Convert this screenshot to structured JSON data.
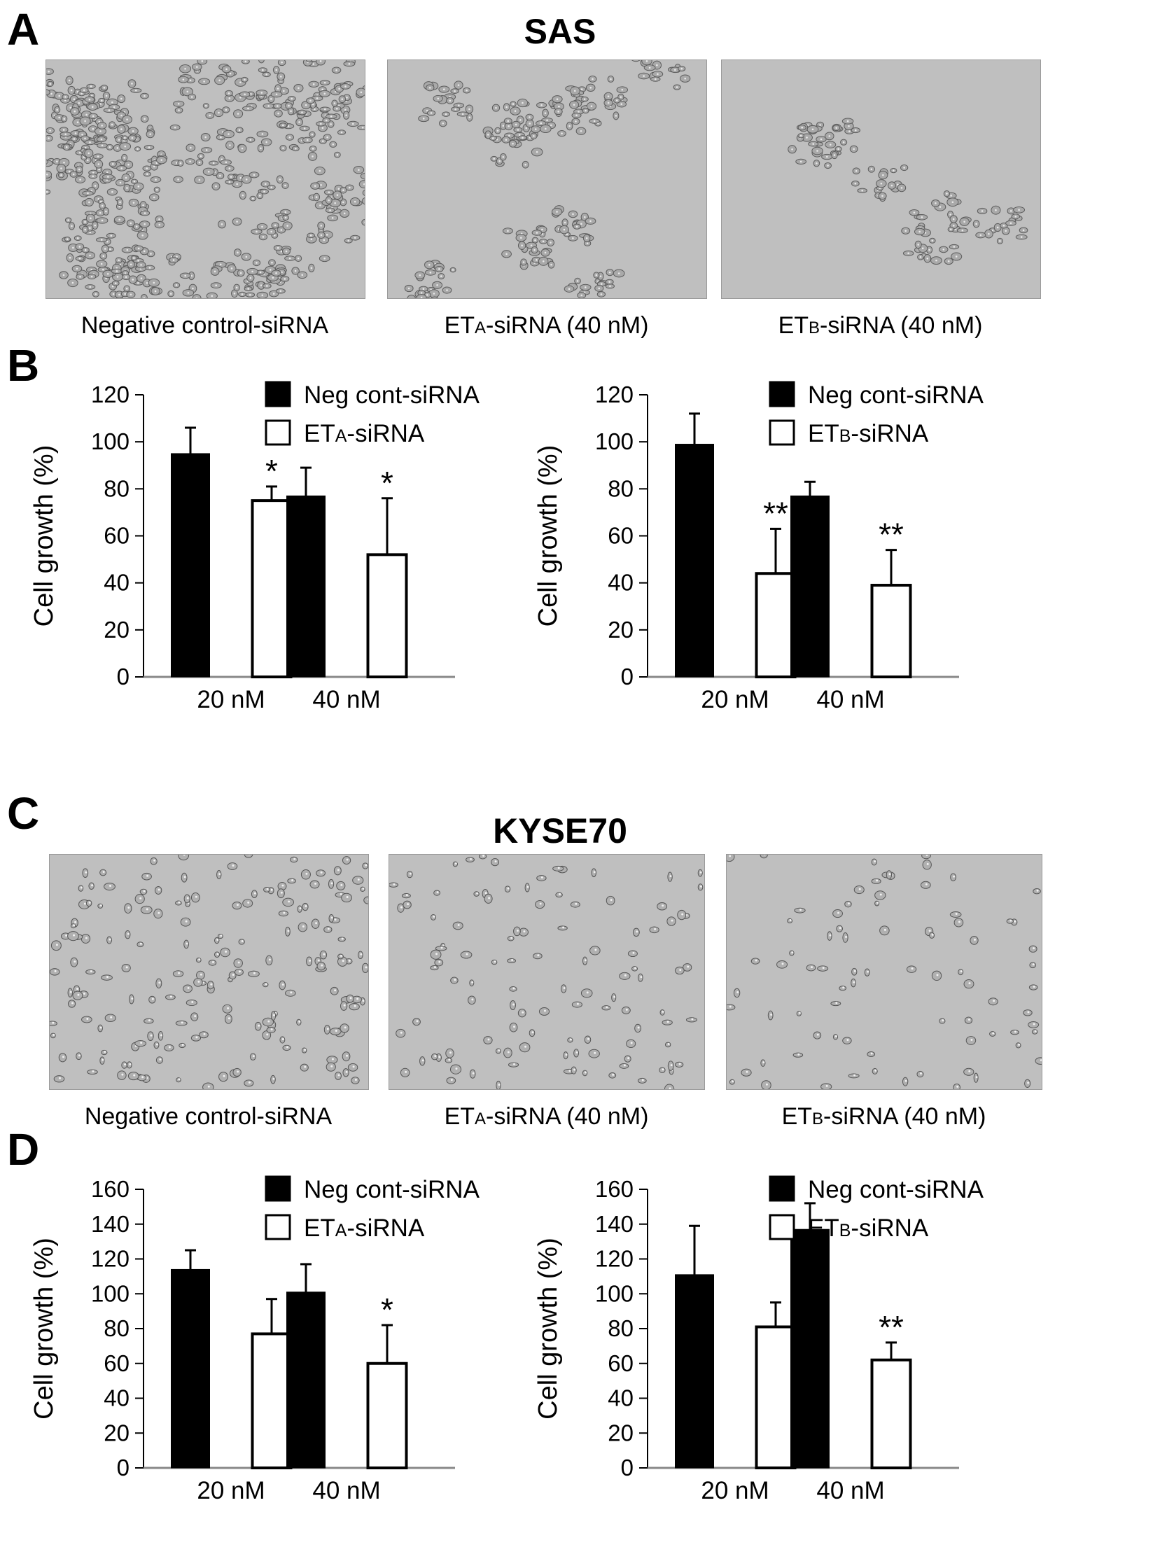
{
  "colors": {
    "bar_neg": "#000000",
    "bar_si": "#ffffff",
    "axis": "#000000",
    "micro_bg": "#bfbfbf"
  },
  "sections": [
    {
      "letter": "A",
      "title": "SAS",
      "micrographs": [
        {
          "image": "phase-contrast micrograph",
          "caption_main": "Negative control-siRNA",
          "caption_pre": "",
          "caption_sub": "",
          "caption_post": ""
        },
        {
          "image": "phase-contrast micrograph",
          "caption_main": "",
          "caption_pre": "ET",
          "caption_sub": "A",
          "caption_post": "-siRNA (40 nM)"
        },
        {
          "image": "phase-contrast micrograph",
          "caption_main": "",
          "caption_pre": "ET",
          "caption_sub": "B",
          "caption_post": "-siRNA (40 nM)"
        }
      ]
    },
    {
      "letter": "C",
      "title": "KYSE70",
      "micrographs": [
        {
          "image": "phase-contrast micrograph",
          "caption_main": "Negative control-siRNA",
          "caption_pre": "",
          "caption_sub": "",
          "caption_post": ""
        },
        {
          "image": "phase-contrast micrograph",
          "caption_main": "",
          "caption_pre": "ET",
          "caption_sub": "A",
          "caption_post": "-siRNA (40 nM)"
        },
        {
          "image": "phase-contrast micrograph",
          "caption_main": "",
          "caption_pre": "ET",
          "caption_sub": "B",
          "caption_post": "-siRNA (40 nM)"
        }
      ]
    }
  ],
  "chart_panels": [
    {
      "letter": "B"
    },
    {
      "letter": "D"
    }
  ],
  "chart_data": [
    {
      "type": "bar",
      "ylabel": "Cell growth (%)",
      "ylim": [
        0,
        120
      ],
      "yticks": [
        0,
        20,
        40,
        60,
        80,
        100,
        120
      ],
      "categories": [
        "20 nM",
        "40 nM"
      ],
      "series": [
        {
          "name": "Neg cont-siRNA",
          "values": [
            95,
            77
          ],
          "errors": [
            11,
            12
          ]
        },
        {
          "name": "ETA-siRNA",
          "name_pre": "ET",
          "name_sub": "A",
          "name_post": "-siRNA",
          "values": [
            75,
            52
          ],
          "errors": [
            6,
            24
          ]
        }
      ],
      "significance": [
        "*",
        "*"
      ],
      "legend": "top-right"
    },
    {
      "type": "bar",
      "ylabel": "Cell growth (%)",
      "ylim": [
        0,
        120
      ],
      "yticks": [
        0,
        20,
        40,
        60,
        80,
        100,
        120
      ],
      "categories": [
        "20 nM",
        "40 nM"
      ],
      "series": [
        {
          "name": "Neg cont-siRNA",
          "values": [
            99,
            77
          ],
          "errors": [
            13,
            6
          ]
        },
        {
          "name": "ETB-siRNA",
          "name_pre": "ET",
          "name_sub": "B",
          "name_post": "-siRNA",
          "values": [
            44,
            39
          ],
          "errors": [
            19,
            15
          ]
        }
      ],
      "significance": [
        "**",
        "**"
      ],
      "legend": "top-right"
    },
    {
      "type": "bar",
      "ylabel": "Cell growth (%)",
      "ylim": [
        0,
        160
      ],
      "yticks": [
        0,
        20,
        40,
        60,
        80,
        100,
        120,
        140,
        160
      ],
      "categories": [
        "20 nM",
        "40 nM"
      ],
      "series": [
        {
          "name": "Neg cont-siRNA",
          "values": [
            114,
            101
          ],
          "errors": [
            11,
            16
          ]
        },
        {
          "name": "ETA-siRNA",
          "name_pre": "ET",
          "name_sub": "A",
          "name_post": "-siRNA",
          "values": [
            77,
            60
          ],
          "errors": [
            20,
            22
          ]
        }
      ],
      "significance": [
        "",
        "*"
      ],
      "legend": "top-right"
    },
    {
      "type": "bar",
      "ylabel": "Cell growth (%)",
      "ylim": [
        0,
        160
      ],
      "yticks": [
        0,
        20,
        40,
        60,
        80,
        100,
        120,
        140,
        160
      ],
      "categories": [
        "20 nM",
        "40 nM"
      ],
      "series": [
        {
          "name": "Neg cont-siRNA",
          "values": [
            111,
            137
          ],
          "errors": [
            28,
            15
          ]
        },
        {
          "name": "ETB-siRNA",
          "name_pre": "ET",
          "name_sub": "B",
          "name_post": "-siRNA",
          "values": [
            81,
            62
          ],
          "errors": [
            14,
            10
          ]
        }
      ],
      "significance": [
        "",
        "**"
      ],
      "legend": "top-right"
    }
  ]
}
